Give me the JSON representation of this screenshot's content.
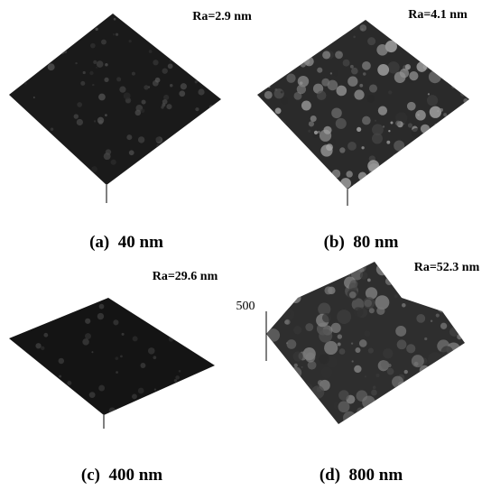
{
  "panels": [
    {
      "ra": "Ra=2.9 nm",
      "caption": "(a)  40 nm"
    },
    {
      "ra": "Ra=4.1 nm",
      "caption": "(b)  80 nm"
    },
    {
      "ra": "Ra=29.6 nm",
      "caption": "(c)  400 nm"
    },
    {
      "ra": "Ra=52.3 nm",
      "caption": "(d)  800 nm",
      "z_label": "500"
    }
  ]
}
